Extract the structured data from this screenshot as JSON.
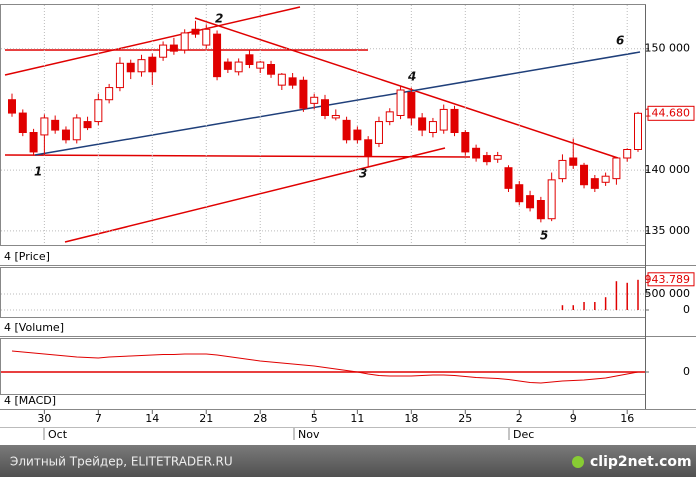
{
  "chart_data": [
    {
      "type": "candlestick",
      "title": "4 [Price]",
      "last_label": "144.680",
      "up_color": "#ffffff",
      "down_color": "#e00000",
      "edge_color": "#e00000",
      "categories": [
        null,
        null,
        null,
        "30",
        null,
        null,
        null,
        null,
        "7",
        null,
        null,
        null,
        null,
        "14",
        null,
        null,
        null,
        null,
        "21",
        null,
        null,
        null,
        null,
        "28",
        null,
        null,
        null,
        null,
        "5",
        null,
        null,
        null,
        "11",
        null,
        null,
        null,
        null,
        "18",
        null,
        null,
        null,
        null,
        "25",
        null,
        null,
        null,
        null,
        "2",
        null,
        null,
        null,
        null,
        "9",
        null,
        null,
        null,
        null,
        "16",
        null
      ],
      "months": [
        "Oct",
        "Nov",
        "Dec"
      ],
      "open": [
        145800,
        144700,
        143100,
        142900,
        144100,
        143300,
        142500,
        144000,
        144000,
        145800,
        146800,
        148800,
        148100,
        149300,
        149300,
        150300,
        149900,
        151600,
        150300,
        151200,
        148900,
        148100,
        149500,
        148400,
        148700,
        147000,
        147600,
        147400,
        145500,
        145800,
        144300,
        144100,
        143300,
        142500,
        142200,
        144000,
        144500,
        146400,
        144300,
        143100,
        143300,
        145000,
        143100,
        141800,
        141200,
        140900,
        140200,
        138800,
        137900,
        137500,
        136000,
        139300,
        141000,
        140400,
        139300,
        139000,
        139300,
        141000,
        141700
      ],
      "high": [
        146300,
        145000,
        143400,
        144600,
        144500,
        143600,
        144600,
        144400,
        146300,
        147100,
        149300,
        149100,
        149500,
        149600,
        150600,
        150900,
        151600,
        152300,
        152000,
        151500,
        149200,
        149200,
        149900,
        149000,
        149000,
        148000,
        148000,
        147700,
        146300,
        146200,
        145000,
        144400,
        143600,
        142800,
        144400,
        145100,
        146900,
        146800,
        144700,
        144300,
        145400,
        145300,
        143300,
        142100,
        141500,
        141500,
        140400,
        139100,
        138300,
        137800,
        139800,
        141300,
        142600,
        140600,
        139600,
        139800,
        141000,
        141800,
        144800
      ],
      "low": [
        144400,
        142800,
        141200,
        141200,
        143000,
        142200,
        142200,
        143300,
        143700,
        145500,
        146500,
        147500,
        147700,
        147000,
        149000,
        149500,
        149600,
        150900,
        150000,
        147400,
        148000,
        147800,
        148400,
        148000,
        147600,
        146600,
        146700,
        144800,
        145000,
        144200,
        144100,
        142200,
        142200,
        140300,
        141900,
        143700,
        144200,
        143700,
        142800,
        142700,
        143000,
        142800,
        141200,
        140700,
        140400,
        140600,
        138200,
        137100,
        136600,
        135700,
        135800,
        139000,
        140100,
        138500,
        138200,
        138700,
        138800,
        140700,
        141500
      ],
      "close": [
        144700,
        143100,
        141500,
        144300,
        143300,
        142500,
        144300,
        143500,
        145800,
        146800,
        148800,
        148100,
        149100,
        148100,
        150300,
        149800,
        151300,
        151200,
        151600,
        147700,
        148300,
        148900,
        148700,
        148900,
        147900,
        147900,
        147000,
        145100,
        146000,
        144500,
        144500,
        142500,
        142500,
        141200,
        144000,
        144800,
        146600,
        144300,
        143300,
        144000,
        145000,
        143100,
        141500,
        141000,
        140700,
        141200,
        138500,
        137400,
        136900,
        136000,
        139200,
        140800,
        140400,
        138800,
        138500,
        139500,
        141000,
        141700,
        144680
      ],
      "ylim": [
        134000,
        153600
      ],
      "yticks": [
        {
          "value": 135000,
          "label": "135 000"
        },
        {
          "value": 140000,
          "label": "140 000"
        },
        {
          "value": 150000,
          "label": "150 000"
        }
      ],
      "annotations": [
        "1",
        "2",
        "3",
        "4",
        "5",
        "6"
      ]
    },
    {
      "type": "bar",
      "title": "4 [Volume]",
      "last_label": "943.789",
      "color": "#e00000",
      "values": [
        0,
        0,
        0,
        0,
        0,
        0,
        0,
        0,
        0,
        0,
        0,
        0,
        0,
        0,
        0,
        0,
        0,
        0,
        0,
        0,
        0,
        0,
        0,
        0,
        0,
        0,
        0,
        0,
        0,
        0,
        0,
        0,
        0,
        0,
        0,
        0,
        0,
        0,
        0,
        0,
        0,
        0,
        0,
        0,
        0,
        0,
        0,
        0,
        0,
        0,
        0,
        150000,
        150000,
        250000,
        250000,
        400000,
        900000,
        850000,
        943789
      ],
      "ylim": [
        0,
        1100000
      ],
      "yticks": [
        0,
        {
          "value": 500000,
          "label": "500 000"
        }
      ]
    },
    {
      "type": "line",
      "title": "4 [MACD]",
      "color": "#e00000",
      "values": [
        2100,
        2000,
        1900,
        1800,
        1700,
        1600,
        1500,
        1450,
        1400,
        1500,
        1550,
        1600,
        1650,
        1700,
        1750,
        1750,
        1800,
        1800,
        1800,
        1700,
        1550,
        1400,
        1250,
        1100,
        1000,
        900,
        800,
        700,
        600,
        450,
        300,
        150,
        0,
        -200,
        -350,
        -400,
        -400,
        -400,
        -350,
        -300,
        -300,
        -350,
        -450,
        -550,
        -600,
        -650,
        -750,
        -900,
        -1050,
        -1100,
        -1000,
        -900,
        -850,
        -800,
        -700,
        -600,
        -400,
        -200,
        0
      ],
      "ylim": [
        -2100,
        3200
      ],
      "yticks": [
        0
      ]
    }
  ],
  "footer": {
    "left": "Элитный Трейдер, ELITETRADER.RU",
    "right": "clip2net.com"
  }
}
